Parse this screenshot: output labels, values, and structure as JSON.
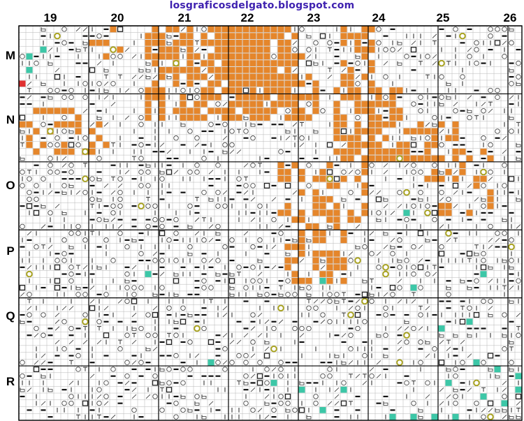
{
  "header": {
    "site_title": "losgraficosdelgato.blogspot.com"
  },
  "columns": [
    "19",
    "20",
    "21",
    "22",
    "23",
    "24",
    "25",
    "26"
  ],
  "rows": [
    "M",
    "N",
    "O",
    "P",
    "Q",
    "R"
  ],
  "colors": {
    "orange_fill": "#e5862b",
    "teal_fill": "#3cc7a7",
    "olive_ring": "#a8a21e",
    "grid_fine": "#b7b7b7",
    "grid_major": "#000000",
    "title": "#3f22b0",
    "red_fill": "#e03030"
  },
  "pattern": {
    "cell_cols": 72,
    "cell_rows": 58,
    "cells_per_section": 10,
    "density_note_excluded": true
  }
}
